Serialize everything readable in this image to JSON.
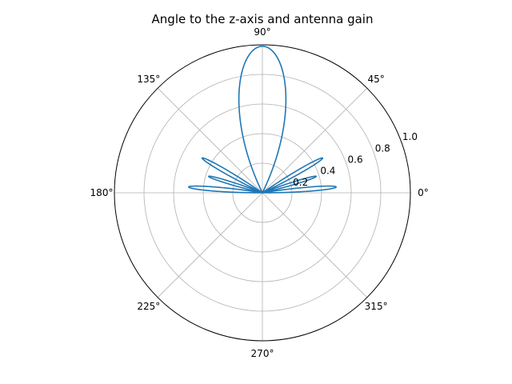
{
  "chart_data": {
    "type": "line",
    "projection": "polar",
    "title": "Angle to the z-axis and antenna gain",
    "theta_tick_labels": [
      "0°",
      "45°",
      "90°",
      "135°",
      "180°",
      "225°",
      "270°",
      "315°"
    ],
    "theta_ticks_deg": [
      0,
      45,
      90,
      135,
      180,
      225,
      270,
      315
    ],
    "r_tick_labels": [
      "0.2",
      "0.4",
      "0.6",
      "0.8",
      "1.0"
    ],
    "r_ticks": [
      0.2,
      0.4,
      0.6,
      0.8,
      1.0
    ],
    "r_label_angle_deg": 22.5,
    "rlim": [
      0,
      1.0
    ],
    "theta_range_deg": [
      0,
      180
    ],
    "grid": true,
    "series": [
      {
        "color": "#1f77b4",
        "lobes": [
          {
            "center_deg": 90,
            "peak_r": 0.99,
            "half_width_deg": 26
          },
          {
            "center_deg": 4.5,
            "peak_r": 0.5,
            "half_width_deg": 4.5
          },
          {
            "center_deg": 17,
            "peak_r": 0.38,
            "half_width_deg": 4
          },
          {
            "center_deg": 30,
            "peak_r": 0.47,
            "half_width_deg": 4.5
          },
          {
            "center_deg": 175.5,
            "peak_r": 0.5,
            "half_width_deg": 4.5
          },
          {
            "center_deg": 163,
            "peak_r": 0.38,
            "half_width_deg": 4
          },
          {
            "center_deg": 150,
            "peak_r": 0.47,
            "half_width_deg": 4.5
          }
        ]
      }
    ]
  }
}
